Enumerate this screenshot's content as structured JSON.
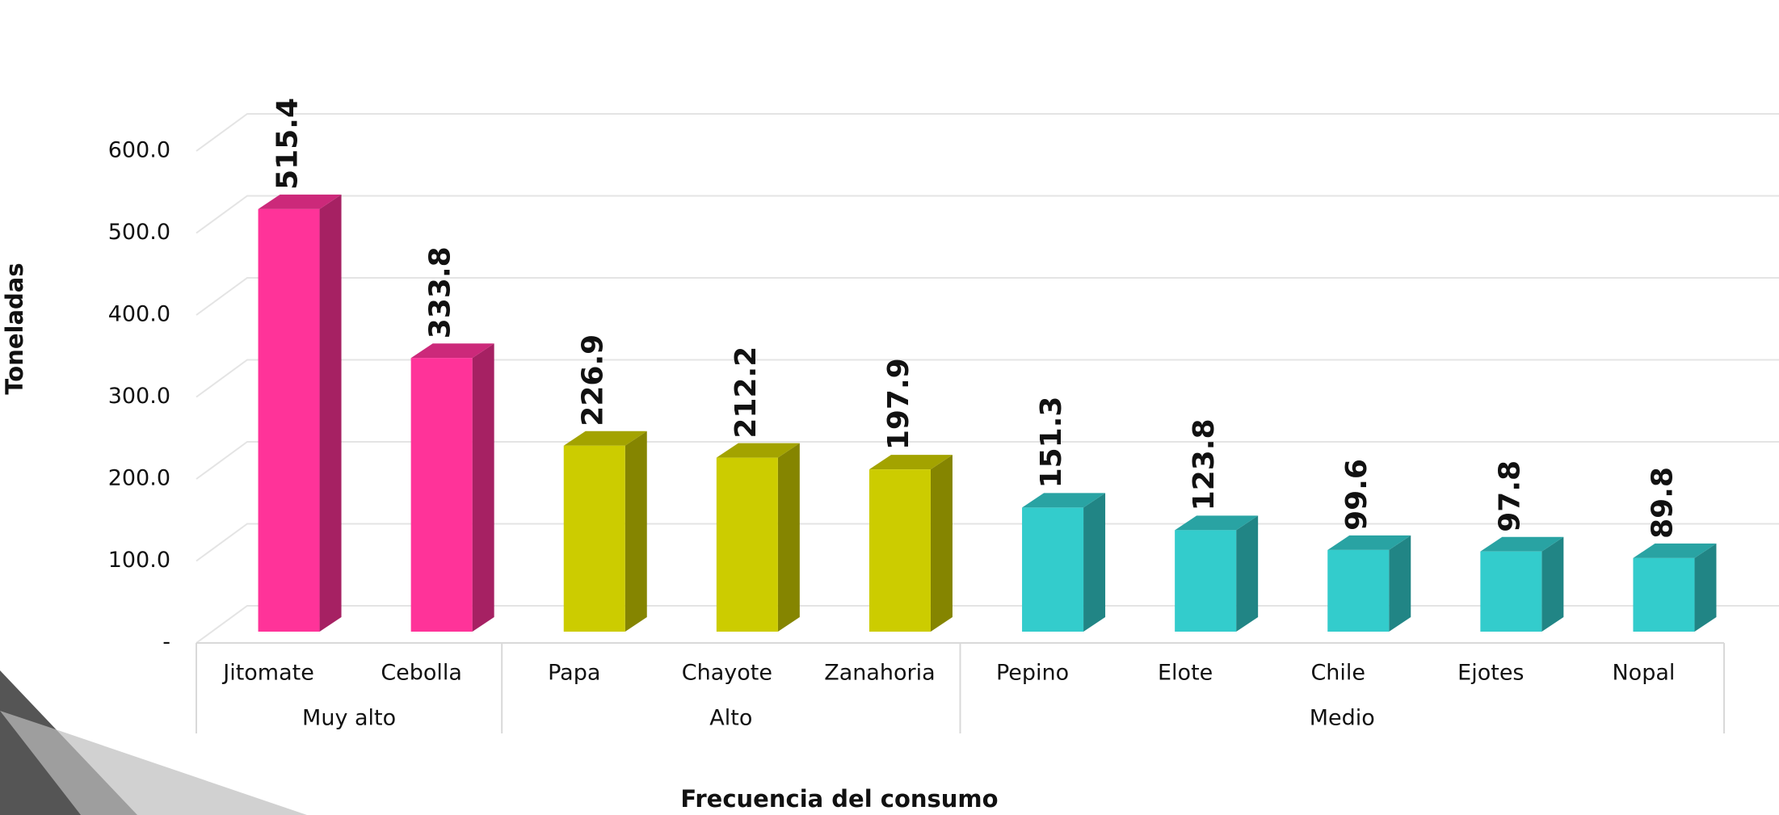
{
  "chart_data": {
    "type": "bar",
    "x_label": "Frecuencia del consumo",
    "y_label": "Toneladas",
    "groups": [
      {
        "label": "Muy alto",
        "categories": [
          "Jitomate",
          "Cebolla"
        ],
        "values": [
          515.4,
          333.8
        ],
        "color": "#ff3399"
      },
      {
        "label": "Alto",
        "categories": [
          "Papa",
          "Chayote",
          "Zanahoria"
        ],
        "values": [
          226.9,
          212.2,
          197.9
        ],
        "color": "#cccc00"
      },
      {
        "label": "Medio",
        "categories": [
          "Pepino",
          "Elote",
          "Chile",
          "Ejotes",
          "Nopal"
        ],
        "values": [
          151.3,
          123.8,
          99.6,
          97.8,
          89.8
        ],
        "color": "#33cccc"
      }
    ],
    "ylim": [
      0,
      600
    ],
    "yticks": [
      {
        "value": 0,
        "label": "-"
      },
      {
        "value": 100,
        "label": "100.0"
      },
      {
        "value": 200,
        "label": "200.0"
      },
      {
        "value": 300,
        "label": "300.0"
      },
      {
        "value": 400,
        "label": "400.0"
      },
      {
        "value": 500,
        "label": "500.0"
      },
      {
        "value": 600,
        "label": "600.0"
      }
    ],
    "grid": true
  }
}
